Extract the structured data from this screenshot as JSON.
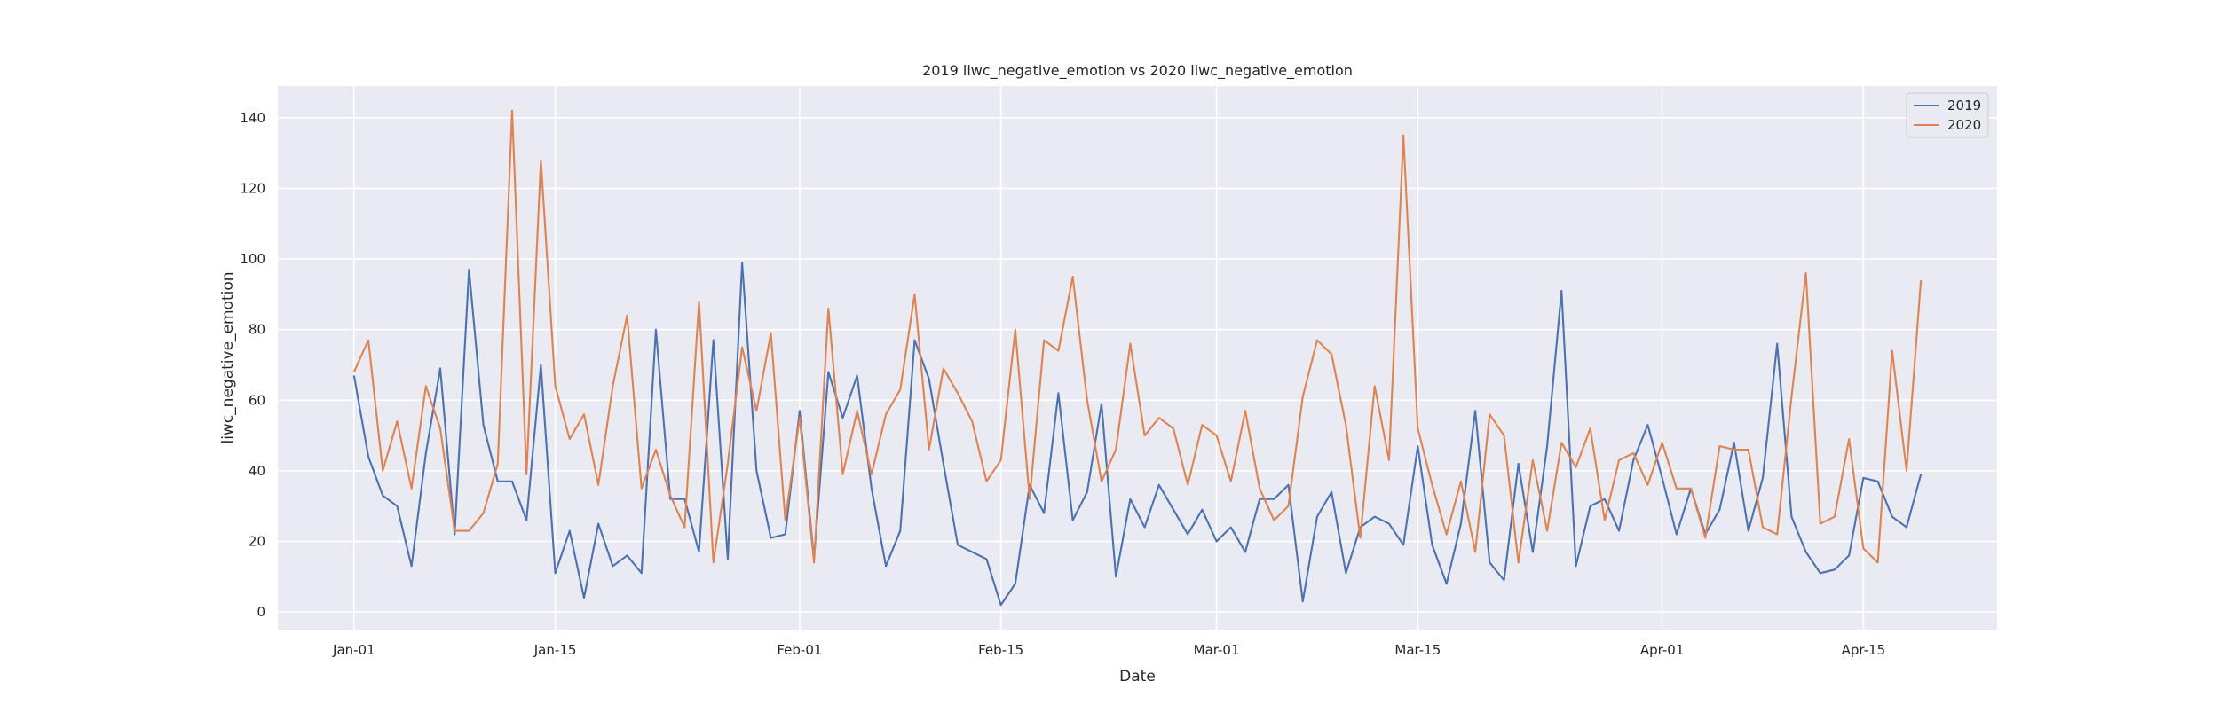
{
  "chart_data": {
    "type": "line",
    "title": "2019 liwc_negative_emotion vs 2020 liwc_negative_emotion",
    "xlabel": "Date",
    "ylabel": "liwc_negative_emotion",
    "x_start": "2020-01-01",
    "x_ticks": [
      "Jan-01",
      "Jan-15",
      "Feb-01",
      "Feb-15",
      "Mar-01",
      "Mar-15",
      "Apr-01",
      "Apr-15"
    ],
    "y_ticks": [
      "0",
      "20",
      "40",
      "60",
      "80",
      "100",
      "120",
      "140"
    ],
    "xlim_days": [
      -5.3,
      114.3
    ],
    "ylim": [
      -5,
      149
    ],
    "grid": true,
    "legend_position": "top-right",
    "background": "#eaeaf2",
    "series": [
      {
        "name": "2019",
        "color": "#4c72b0",
        "values": [
          67,
          44,
          33,
          30,
          13,
          45,
          69,
          22,
          97,
          53,
          37,
          37,
          26,
          70,
          11,
          23,
          4,
          25,
          13,
          16,
          11,
          80,
          32,
          32,
          17,
          77,
          15,
          99,
          40,
          21,
          22,
          57,
          15,
          68,
          55,
          67,
          35,
          13,
          23,
          77,
          66,
          42,
          19,
          17,
          15,
          2,
          8,
          36,
          28,
          62,
          26,
          34,
          59,
          10,
          32,
          24,
          36,
          29,
          22,
          29,
          20,
          24,
          17,
          32,
          32,
          36,
          3,
          27,
          34,
          11,
          24,
          27,
          25,
          19,
          47,
          19,
          8,
          25,
          57,
          14,
          9,
          42,
          17,
          47,
          91,
          13,
          30,
          32,
          23,
          43,
          53,
          38,
          22,
          35,
          22,
          29,
          48,
          23,
          38,
          76,
          27,
          17,
          11,
          12,
          16,
          38,
          37,
          27,
          24,
          39
        ]
      },
      {
        "name": "2020",
        "color": "#dd8452",
        "values": [
          68,
          77,
          40,
          54,
          35,
          64,
          52,
          23,
          23,
          28,
          42,
          142,
          39,
          128,
          64,
          49,
          56,
          36,
          64,
          84,
          35,
          46,
          33,
          24,
          88,
          14,
          42,
          75,
          57,
          79,
          26,
          55,
          14,
          86,
          39,
          57,
          39,
          56,
          63,
          90,
          46,
          69,
          62,
          54,
          37,
          43,
          80,
          32,
          77,
          74,
          95,
          60,
          37,
          46,
          76,
          50,
          55,
          52,
          36,
          53,
          50,
          37,
          57,
          35,
          26,
          30,
          61,
          77,
          73,
          53,
          21,
          64,
          43,
          135,
          52,
          36,
          22,
          37,
          17,
          56,
          50,
          14,
          43,
          23,
          48,
          41,
          52,
          26,
          43,
          45,
          36,
          48,
          35,
          35,
          21,
          47,
          46,
          46,
          24,
          22,
          61,
          96,
          25,
          27,
          49,
          18,
          14,
          74,
          40,
          94
        ]
      }
    ]
  }
}
